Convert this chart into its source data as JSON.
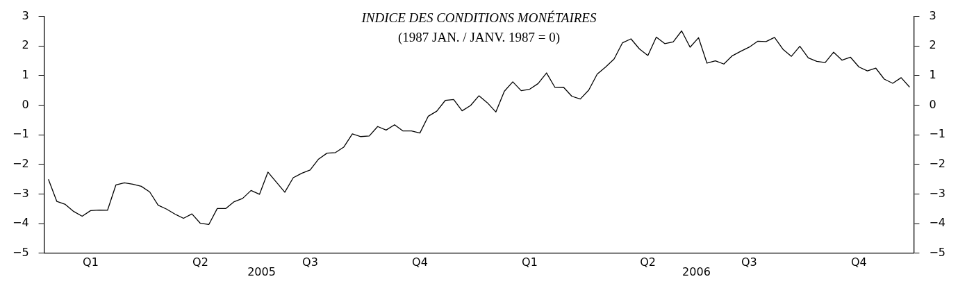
{
  "chart_data": {
    "type": "line",
    "title": "INDICE DES CONDITIONS MONÉTAIRES",
    "subtitle": "(1987 JAN. / JANV. 1987 = 0)",
    "categories": [
      null,
      null,
      null,
      null,
      null,
      "Q1",
      null,
      null,
      null,
      null,
      null,
      null,
      null,
      null,
      null,
      null,
      null,
      null,
      "Q2",
      null,
      null,
      null,
      null,
      null,
      null,
      null,
      null,
      null,
      null,
      null,
      null,
      "Q3",
      null,
      null,
      null,
      null,
      null,
      null,
      null,
      null,
      null,
      null,
      null,
      null,
      "Q4",
      null,
      null,
      null,
      null,
      null,
      null,
      null,
      null,
      null,
      null,
      null,
      null,
      "Q1",
      null,
      null,
      null,
      null,
      null,
      null,
      null,
      null,
      null,
      null,
      null,
      null,
      null,
      "Q2",
      null,
      null,
      null,
      null,
      null,
      null,
      null,
      null,
      null,
      null,
      null,
      "Q3",
      null,
      null,
      null,
      null,
      null,
      null,
      null,
      null,
      null,
      null,
      null,
      null,
      "Q4",
      null,
      null,
      null,
      null,
      null,
      null
    ],
    "series": [
      {
        "color": "#000000",
        "values": [
          -2.5,
          -3.25,
          -3.35,
          -3.59,
          -3.75,
          -3.56,
          -3.54,
          -3.55,
          -2.69,
          -2.62,
          -2.67,
          -2.74,
          -2.93,
          -3.38,
          -3.51,
          -3.68,
          -3.82,
          -3.67,
          -3.99,
          -4.03,
          -3.49,
          -3.49,
          -3.26,
          -3.15,
          -2.88,
          -3.01,
          -2.26,
          -2.6,
          -2.94,
          -2.45,
          -2.3,
          -2.19,
          -1.82,
          -1.62,
          -1.6,
          -1.41,
          -0.97,
          -1.06,
          -1.04,
          -0.72,
          -0.84,
          -0.66,
          -0.87,
          -0.87,
          -0.94,
          -0.37,
          -0.2,
          0.16,
          0.19,
          -0.19,
          -0.01,
          0.32,
          0.08,
          -0.23,
          0.47,
          0.79,
          0.49,
          0.54,
          0.73,
          1.09,
          0.6,
          0.61,
          0.3,
          0.21,
          0.51,
          1.05,
          1.29,
          1.56,
          2.11,
          2.24,
          1.9,
          1.68,
          2.3,
          2.08,
          2.14,
          2.51,
          1.96,
          2.28,
          1.42,
          1.5,
          1.39,
          1.67,
          1.82,
          1.96,
          2.16,
          2.15,
          2.29,
          1.89,
          1.65,
          1.99,
          1.6,
          1.48,
          1.44,
          1.79,
          1.52,
          1.62,
          1.29,
          1.16,
          1.25,
          0.88,
          0.74,
          0.93,
          0.61
        ]
      }
    ],
    "annotations": [
      "2005",
      "2006"
    ],
    "ylim": [
      -5,
      3
    ],
    "yticks": [
      {
        "value": -5,
        "label": "−5"
      },
      {
        "value": -4,
        "label": "−4"
      },
      {
        "value": -3,
        "label": "−3"
      },
      {
        "value": -2,
        "label": "−2"
      },
      {
        "value": -1,
        "label": "−1"
      },
      0,
      1,
      2,
      3
    ],
    "y2lim": [
      -5,
      3
    ],
    "y2ticks": [
      {
        "value": -5,
        "label": "−5"
      },
      {
        "value": -4,
        "label": "−4"
      },
      {
        "value": -3,
        "label": "−3"
      },
      {
        "value": -2,
        "label": "−2"
      },
      {
        "value": -1,
        "label": "−1"
      },
      0,
      1,
      2,
      3
    ],
    "grid": false,
    "legend": false,
    "marker": "none",
    "line_style": "solid"
  }
}
